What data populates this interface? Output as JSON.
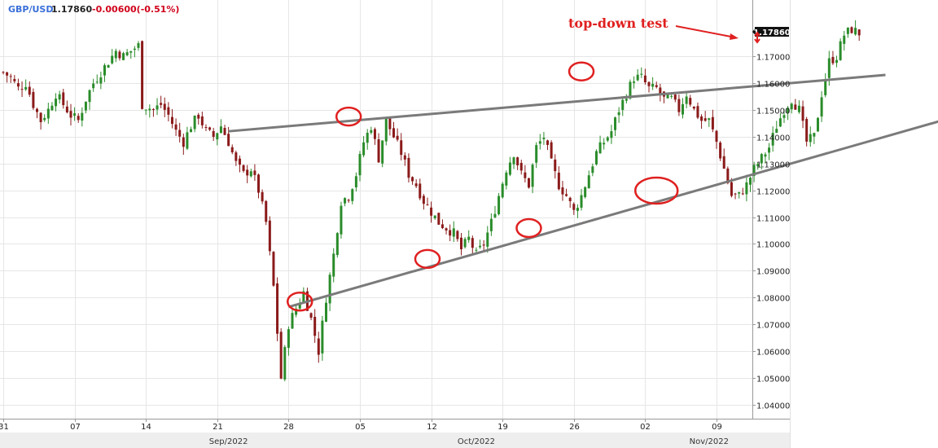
{
  "header": {
    "symbol": "GBP/USD",
    "price": "1.17860",
    "change": "-0.00600(-0.51%)",
    "symbol_color": "#3a6fd8",
    "change_color": "#d0021b"
  },
  "annotation": {
    "text": "top-down test",
    "color": "#e02020"
  },
  "last_price_label": "1.17860",
  "colors": {
    "up": "#2a8c2a",
    "down": "#8b1a1a",
    "trendline": "#7a7a7a",
    "circle": "#e02020",
    "price_box": "#111111"
  },
  "chart_data": {
    "type": "candlestick",
    "symbol": "GBP/USD",
    "y_ticks": [
      "1.04000",
      "1.05000",
      "1.06000",
      "1.07000",
      "1.08000",
      "1.09000",
      "1.10000",
      "1.11000",
      "1.12000",
      "1.13000",
      "1.14000",
      "1.15000",
      "1.16000",
      "1.17000"
    ],
    "ylim": [
      1.0365,
      1.179
    ],
    "x_ticks": [
      "31",
      "07",
      "14",
      "21",
      "28",
      "05",
      "12",
      "19",
      "26",
      "02",
      "09"
    ],
    "months": [
      "Sep/2022",
      "Oct/2022",
      "Nov/2022"
    ],
    "grid": true,
    "close_path": [
      [
        0,
        1.164
      ],
      [
        2,
        1.162
      ],
      [
        4,
        1.158
      ],
      [
        6,
        1.16
      ],
      [
        8,
        1.152
      ],
      [
        10,
        1.146
      ],
      [
        12,
        1.15
      ],
      [
        14,
        1.156
      ],
      [
        16,
        1.152
      ],
      [
        18,
        1.148
      ],
      [
        20,
        1.146
      ],
      [
        22,
        1.154
      ],
      [
        24,
        1.16
      ],
      [
        26,
        1.164
      ],
      [
        28,
        1.168
      ],
      [
        30,
        1.172
      ],
      [
        32,
        1.17
      ],
      [
        34,
        1.172
      ],
      [
        36,
        1.174
      ],
      [
        37,
        1.152
      ],
      [
        40,
        1.15
      ],
      [
        42,
        1.152
      ],
      [
        44,
        1.148
      ],
      [
        46,
        1.142
      ],
      [
        48,
        1.138
      ],
      [
        50,
        1.144
      ],
      [
        52,
        1.148
      ],
      [
        54,
        1.142
      ],
      [
        56,
        1.14
      ],
      [
        58,
        1.144
      ],
      [
        60,
        1.138
      ],
      [
        62,
        1.13
      ],
      [
        64,
        1.126
      ],
      [
        66,
        1.128
      ],
      [
        68,
        1.12
      ],
      [
        70,
        1.108
      ],
      [
        72,
        1.084
      ],
      [
        74,
        1.05
      ],
      [
        76,
        1.07
      ],
      [
        78,
        1.076
      ],
      [
        80,
        1.082
      ],
      [
        82,
        1.072
      ],
      [
        84,
        1.06
      ],
      [
        86,
        1.08
      ],
      [
        88,
        1.096
      ],
      [
        90,
        1.116
      ],
      [
        92,
        1.118
      ],
      [
        94,
        1.126
      ],
      [
        96,
        1.138
      ],
      [
        98,
        1.144
      ],
      [
        100,
        1.132
      ],
      [
        102,
        1.146
      ],
      [
        104,
        1.14
      ],
      [
        106,
        1.134
      ],
      [
        108,
        1.126
      ],
      [
        110,
        1.122
      ],
      [
        112,
        1.116
      ],
      [
        114,
        1.112
      ],
      [
        116,
        1.108
      ],
      [
        118,
        1.106
      ],
      [
        120,
        1.104
      ],
      [
        122,
        1.098
      ],
      [
        124,
        1.102
      ],
      [
        126,
        1.096
      ],
      [
        128,
        1.1
      ],
      [
        130,
        1.108
      ],
      [
        132,
        1.118
      ],
      [
        134,
        1.128
      ],
      [
        136,
        1.134
      ],
      [
        138,
        1.126
      ],
      [
        140,
        1.122
      ],
      [
        142,
        1.136
      ],
      [
        144,
        1.14
      ],
      [
        146,
        1.13
      ],
      [
        148,
        1.122
      ],
      [
        150,
        1.118
      ],
      [
        152,
        1.112
      ],
      [
        154,
        1.118
      ],
      [
        156,
        1.126
      ],
      [
        158,
        1.134
      ],
      [
        160,
        1.138
      ],
      [
        162,
        1.142
      ],
      [
        164,
        1.15
      ],
      [
        166,
        1.156
      ],
      [
        168,
        1.162
      ],
      [
        170,
        1.162
      ],
      [
        172,
        1.158
      ],
      [
        174,
        1.158
      ],
      [
        176,
        1.154
      ],
      [
        178,
        1.154
      ],
      [
        180,
        1.15
      ],
      [
        182,
        1.156
      ],
      [
        184,
        1.15
      ],
      [
        186,
        1.146
      ],
      [
        188,
        1.146
      ],
      [
        190,
        1.138
      ],
      [
        192,
        1.128
      ],
      [
        194,
        1.118
      ],
      [
        196,
        1.118
      ],
      [
        198,
        1.122
      ],
      [
        200,
        1.128
      ],
      [
        202,
        1.132
      ],
      [
        204,
        1.136
      ],
      [
        206,
        1.144
      ],
      [
        208,
        1.15
      ],
      [
        210,
        1.154
      ],
      [
        212,
        1.15
      ],
      [
        214,
        1.138
      ],
      [
        216,
        1.14
      ],
      [
        218,
        1.156
      ],
      [
        220,
        1.168
      ],
      [
        222,
        1.17
      ],
      [
        224,
        1.178
      ],
      [
        226,
        1.18
      ],
      [
        228,
        1.1786
      ]
    ],
    "candle_span_points": 228,
    "x_tick_points": [
      0,
      19,
      38,
      57,
      76,
      95,
      114,
      133,
      152,
      171,
      190
    ],
    "trendlines": [
      {
        "from": [
          60,
          1.142
        ],
        "to": [
          235,
          1.163
        ],
        "extend_right": true
      },
      {
        "from": [
          76,
          1.0765
        ],
        "to": [
          250,
          1.146
        ],
        "extend_right": true
      }
    ],
    "marked_points": [
      {
        "x": 79,
        "y": 1.0785
      },
      {
        "x": 92,
        "y": 1.1475
      },
      {
        "x": 113,
        "y": 1.0944
      },
      {
        "x": 140,
        "y": 1.1059
      },
      {
        "x": 154,
        "y": 1.1643
      },
      {
        "x": 174,
        "y": 1.1199
      }
    ]
  }
}
